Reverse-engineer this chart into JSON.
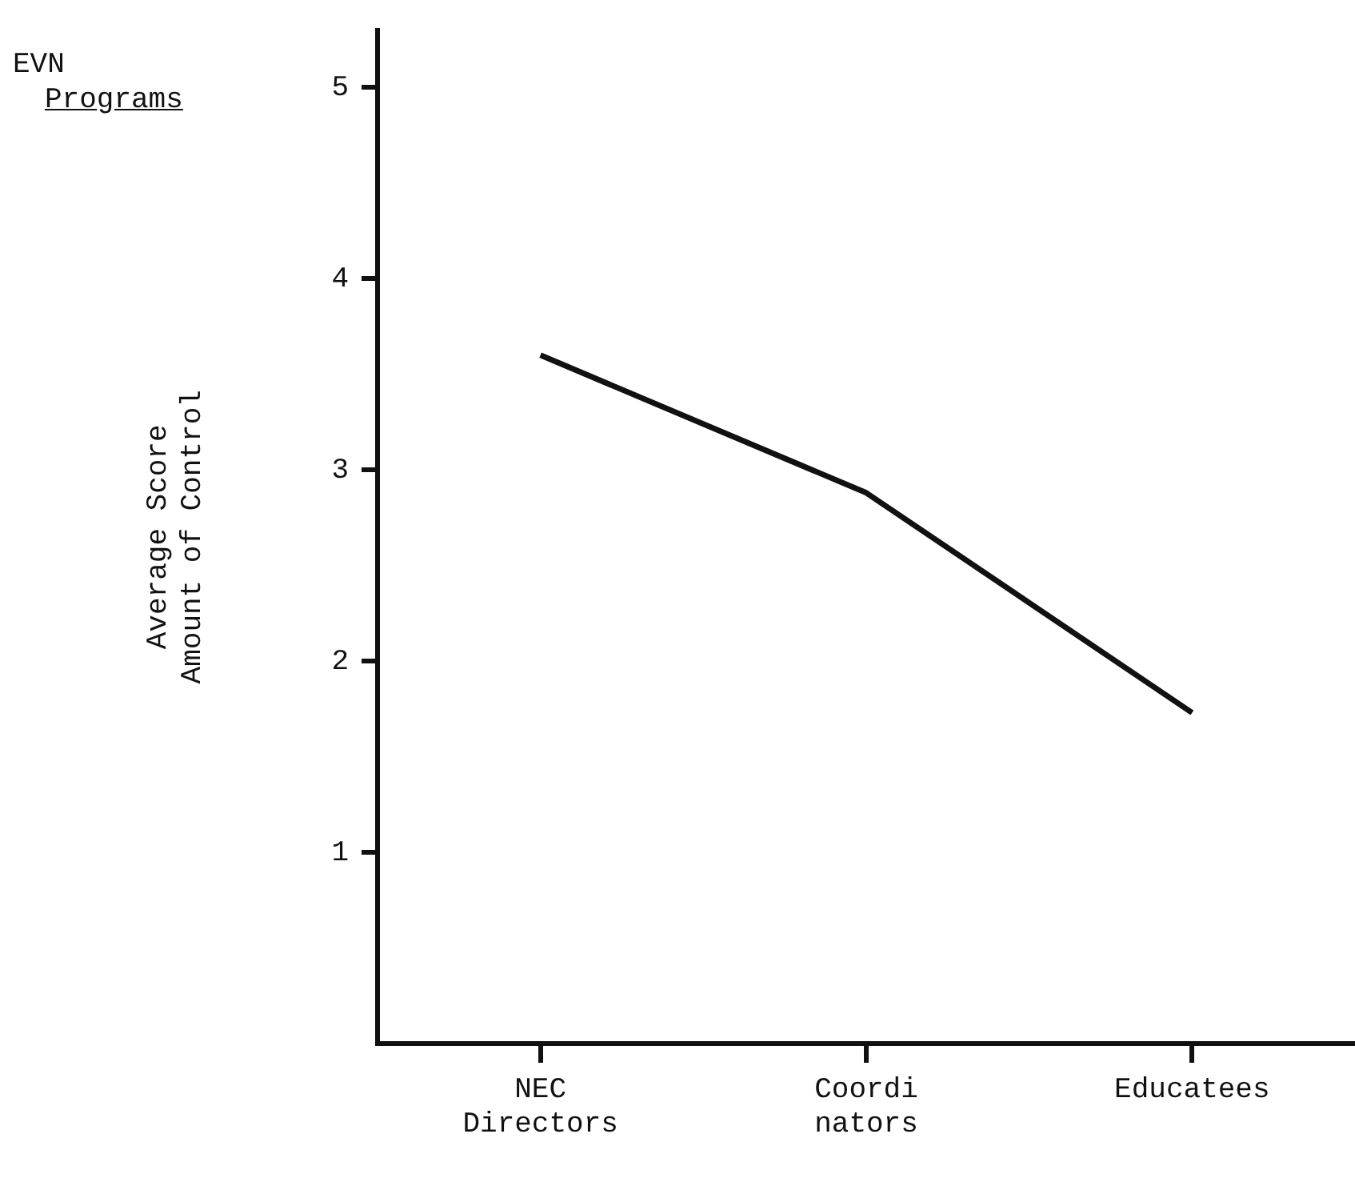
{
  "chart_data": {
    "type": "line",
    "ylabel": "Average Score\nAmount of Control",
    "categories": [
      "NEC\nDirectors",
      "Coordi\nnators",
      "Educatees"
    ],
    "series": [
      {
        "color": "#111111",
        "values": [
          3.6,
          2.88,
          1.73
        ]
      }
    ],
    "ylim": [
      0,
      5.3
    ],
    "yticks": [
      1,
      2,
      3,
      4,
      5
    ],
    "grid": false,
    "legend": false,
    "marker": "none",
    "line_style": "solid",
    "annotations": [
      "EVN\nPrograms"
    ]
  }
}
